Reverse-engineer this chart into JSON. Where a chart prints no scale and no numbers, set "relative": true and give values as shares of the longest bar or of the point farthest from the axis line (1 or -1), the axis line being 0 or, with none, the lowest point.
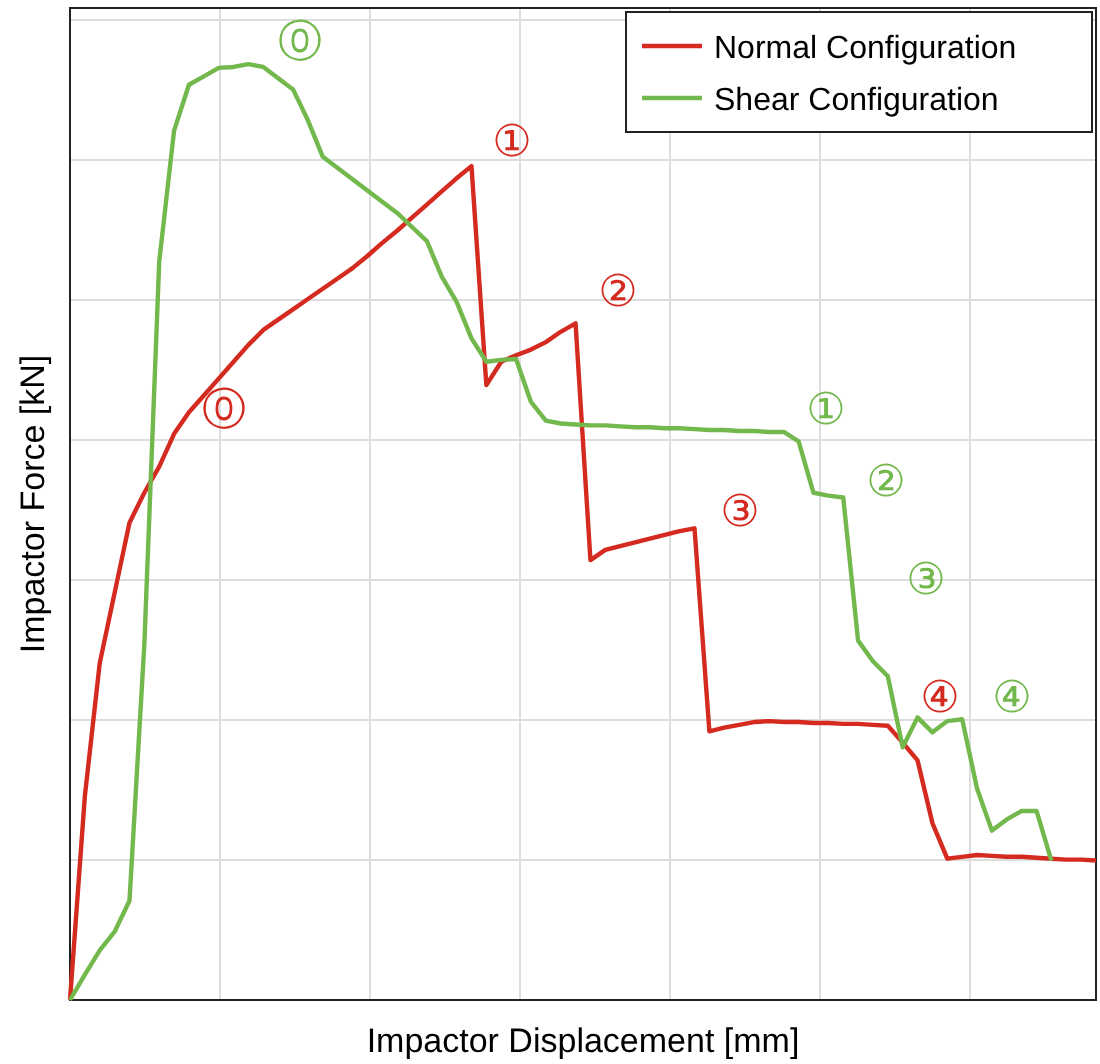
{
  "chart_data": {
    "type": "line",
    "relative": true,
    "xlabel": "Impactor Displacement [mm]",
    "ylabel": "Impactor Force [kN]",
    "grid": true,
    "legend": "top right",
    "marker": "none",
    "line_style": "solid",
    "categories": [
      null,
      null,
      null,
      null,
      null,
      null,
      null,
      null,
      null,
      null,
      null,
      null,
      null,
      null,
      null,
      null,
      null,
      null,
      null,
      null,
      null,
      null,
      null,
      null,
      null,
      null,
      null,
      null,
      null,
      null,
      null,
      null,
      null,
      null,
      null,
      null,
      null,
      null,
      null,
      null,
      null,
      null,
      null,
      null,
      null,
      null,
      null,
      null,
      null,
      null,
      null,
      null,
      null,
      null,
      null,
      null,
      null,
      null,
      null,
      null,
      null,
      null,
      null,
      null,
      null,
      null,
      null,
      null,
      null,
      null
    ],
    "series": [
      {
        "name": "Normal Configuration",
        "color": "#d42a20",
        "values": [
          0,
          0.218,
          0.36,
          0.435,
          0.51,
          0.542,
          0.57,
          0.605,
          0.628,
          0.646,
          0.664,
          0.682,
          0.7,
          0.716,
          0.727,
          0.738,
          0.749,
          0.76,
          0.771,
          0.782,
          0.795,
          0.809,
          0.822,
          0.836,
          0.85,
          0.864,
          0.878,
          0.891,
          0.657,
          0.682,
          0.689,
          0.695,
          0.703,
          0.714,
          0.723,
          0.47,
          0.481,
          0.485,
          0.489,
          0.493,
          0.497,
          0.501,
          0.504,
          0.287,
          0.291,
          0.294,
          0.297,
          0.298,
          0.297,
          0.297,
          0.296,
          0.296,
          0.295,
          0.295,
          0.294,
          0.293,
          0.275,
          0.256,
          0.189,
          0.151,
          0.153,
          0.155,
          0.154,
          0.153,
          0.153,
          0.152,
          0.151,
          0.15,
          0.15,
          0.149
        ]
      },
      {
        "name": "Shear Configuration",
        "color": "#72b84c",
        "values": [
          0,
          0.027,
          0.053,
          0.073,
          0.106,
          0.38,
          0.789,
          0.929,
          0.978,
          0.987,
          0.996,
          0.997,
          1,
          0.997,
          0.985,
          0.973,
          0.94,
          0.901,
          0.889,
          0.877,
          0.865,
          0.853,
          0.841,
          0.826,
          0.811,
          0.773,
          0.746,
          0.707,
          0.682,
          0.684,
          0.685,
          0.639,
          0.619,
          0.616,
          0.615,
          0.614,
          0.614,
          0.613,
          0.612,
          0.612,
          0.611,
          0.611,
          0.61,
          0.609,
          0.609,
          0.608,
          0.608,
          0.607,
          0.607,
          0.597,
          0.542,
          0.539,
          0.537,
          0.384,
          0.362,
          0.346,
          0.27,
          0.302,
          0.286,
          0.298,
          0.3,
          0.226,
          0.181,
          0.193,
          0.202,
          0.202,
          0.149,
          null,
          null,
          null
        ]
      }
    ],
    "annotations": [
      "⓪",
      "①",
      "②",
      "③",
      "④",
      "⓪",
      "①",
      "②",
      "③",
      "④"
    ]
  }
}
